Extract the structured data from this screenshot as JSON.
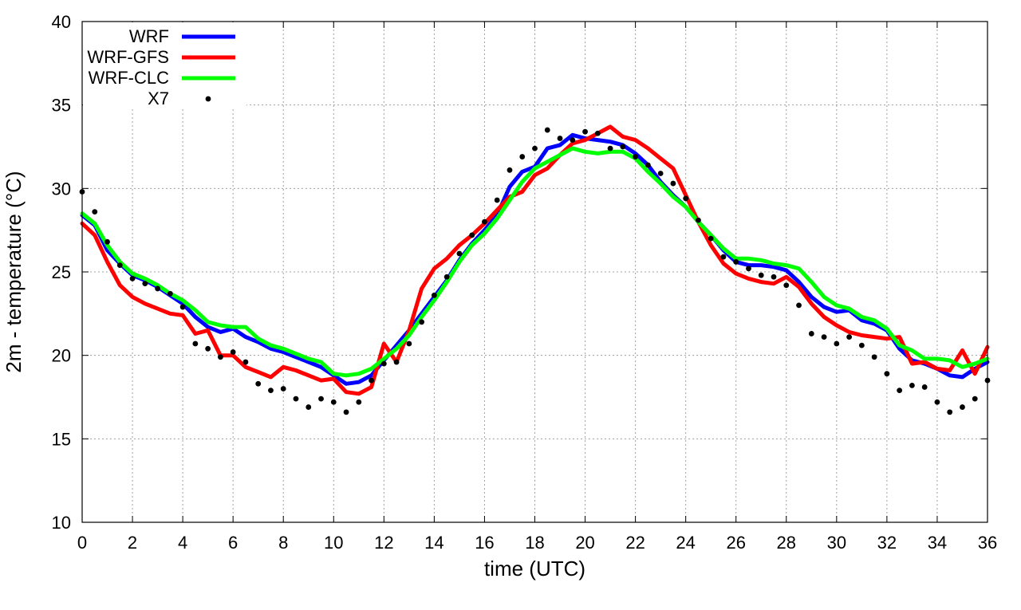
{
  "chart_data": {
    "type": "line",
    "title": "",
    "xlabel": "time (UTC)",
    "ylabel": "2m - temperature (°C)",
    "xlim": [
      0,
      36
    ],
    "ylim": [
      10,
      40
    ],
    "xticks": [
      "0",
      "2",
      "4",
      "6",
      "8",
      "10",
      "12",
      "14",
      "16",
      "18",
      "20",
      "22",
      "24",
      "26",
      "28",
      "30",
      "32",
      "34",
      "36"
    ],
    "yticks": [
      "10",
      "15",
      "20",
      "25",
      "30",
      "35",
      "40"
    ],
    "grid": true,
    "legend_position": "top-left",
    "series": [
      {
        "name": "WRF",
        "style": "line",
        "color": "#0000ff",
        "x": [
          0,
          0.5,
          1,
          1.5,
          2,
          2.5,
          3,
          3.5,
          4,
          4.5,
          5,
          5.5,
          6,
          6.5,
          7,
          7.5,
          8,
          8.5,
          9,
          9.5,
          10,
          10.5,
          11,
          11.5,
          12,
          12.5,
          13,
          13.5,
          14,
          14.5,
          15,
          15.5,
          16,
          16.5,
          17,
          17.5,
          18,
          18.5,
          19,
          19.5,
          20,
          20.5,
          21,
          21.5,
          22,
          22.5,
          23,
          23.5,
          24,
          24.5,
          25,
          25.5,
          26,
          26.5,
          27,
          27.5,
          28,
          28.5,
          29,
          29.5,
          30,
          30.5,
          31,
          31.5,
          32,
          32.5,
          33,
          33.5,
          34,
          34.5,
          35,
          35.5,
          36
        ],
        "y": [
          28.4,
          27.8,
          26.3,
          25.5,
          24.8,
          24.5,
          24.1,
          23.6,
          23.1,
          22.3,
          21.7,
          21.4,
          21.6,
          21.1,
          20.8,
          20.4,
          20.2,
          19.9,
          19.6,
          19.3,
          18.8,
          18.3,
          18.4,
          18.8,
          19.7,
          20.6,
          21.5,
          22.5,
          23.5,
          24.5,
          25.7,
          26.7,
          27.5,
          28.4,
          30.1,
          31.0,
          31.3,
          32.4,
          32.6,
          33.2,
          33.0,
          32.9,
          32.8,
          32.6,
          32.1,
          31.4,
          30.4,
          29.6,
          28.9,
          28.0,
          27.2,
          26.3,
          25.6,
          25.4,
          25.4,
          25.3,
          25.1,
          24.4,
          23.5,
          22.9,
          22.6,
          22.7,
          22.1,
          21.9,
          21.5,
          20.4,
          19.7,
          19.5,
          19.2,
          18.8,
          18.7,
          19.2,
          19.6
        ]
      },
      {
        "name": "WRF-GFS",
        "style": "line",
        "color": "#ff0000",
        "x": [
          0,
          0.5,
          1,
          1.5,
          2,
          2.5,
          3,
          3.5,
          4,
          4.5,
          5,
          5.5,
          6,
          6.5,
          7,
          7.5,
          8,
          8.5,
          9,
          9.5,
          10,
          10.5,
          11,
          11.5,
          12,
          12.5,
          13,
          13.5,
          14,
          14.5,
          15,
          15.5,
          16,
          16.5,
          17,
          17.5,
          18,
          18.5,
          19,
          19.5,
          20,
          20.5,
          21,
          21.5,
          22,
          22.5,
          23,
          23.5,
          24,
          24.5,
          25,
          25.5,
          26,
          26.5,
          27,
          27.5,
          28,
          28.5,
          29,
          29.5,
          30,
          30.5,
          31,
          31.5,
          32,
          32.5,
          33,
          33.5,
          34,
          34.5,
          35,
          35.5,
          36
        ],
        "y": [
          27.9,
          27.2,
          25.6,
          24.2,
          23.5,
          23.1,
          22.8,
          22.5,
          22.4,
          21.3,
          21.5,
          20.0,
          20.0,
          19.3,
          19.0,
          18.7,
          19.3,
          19.1,
          18.8,
          18.5,
          18.6,
          17.8,
          17.7,
          18.1,
          20.7,
          19.6,
          21.5,
          24.0,
          25.2,
          25.8,
          26.6,
          27.2,
          27.9,
          28.7,
          29.5,
          29.8,
          30.8,
          31.2,
          32.0,
          32.7,
          32.9,
          33.3,
          33.7,
          33.1,
          32.9,
          32.4,
          31.8,
          31.2,
          29.6,
          28.0,
          26.6,
          25.5,
          24.9,
          24.6,
          24.4,
          24.3,
          24.7,
          24.1,
          23.1,
          22.3,
          21.8,
          21.4,
          21.2,
          21.1,
          21.0,
          21.1,
          19.5,
          19.6,
          19.2,
          19.1,
          20.3,
          18.9,
          20.5
        ]
      },
      {
        "name": "WRF-CLC",
        "style": "line",
        "color": "#00ff00",
        "x": [
          0,
          0.5,
          1,
          1.5,
          2,
          2.5,
          3,
          3.5,
          4,
          4.5,
          5,
          5.5,
          6,
          6.5,
          7,
          7.5,
          8,
          8.5,
          9,
          9.5,
          10,
          10.5,
          11,
          11.5,
          12,
          12.5,
          13,
          13.5,
          14,
          14.5,
          15,
          15.5,
          16,
          16.5,
          17,
          17.5,
          18,
          18.5,
          19,
          19.5,
          20,
          20.5,
          21,
          21.5,
          22,
          22.5,
          23,
          23.5,
          24,
          24.5,
          25,
          25.5,
          26,
          26.5,
          27,
          27.5,
          28,
          28.5,
          29,
          29.5,
          30,
          30.5,
          31,
          31.5,
          32,
          32.5,
          33,
          33.5,
          34,
          34.5,
          35,
          35.5,
          36
        ],
        "y": [
          28.5,
          27.9,
          26.6,
          25.6,
          24.9,
          24.6,
          24.2,
          23.7,
          23.3,
          22.7,
          22.0,
          21.8,
          21.7,
          21.7,
          21.0,
          20.6,
          20.4,
          20.1,
          19.8,
          19.6,
          18.9,
          18.8,
          18.9,
          19.2,
          19.8,
          20.4,
          21.2,
          22.3,
          23.3,
          24.4,
          25.6,
          26.6,
          27.3,
          28.2,
          29.3,
          30.4,
          31.2,
          31.6,
          32.0,
          32.4,
          32.2,
          32.1,
          32.2,
          32.2,
          31.8,
          31.0,
          30.3,
          29.5,
          28.9,
          28.0,
          27.2,
          26.4,
          25.8,
          25.8,
          25.7,
          25.5,
          25.4,
          25.2,
          24.4,
          23.5,
          23.0,
          22.8,
          22.3,
          22.1,
          21.6,
          20.6,
          20.3,
          19.8,
          19.8,
          19.7,
          19.3,
          19.5,
          19.8
        ]
      },
      {
        "name": "X7",
        "style": "points",
        "color": "#000000",
        "x": [
          0,
          0.5,
          1,
          1.5,
          2,
          2.5,
          3,
          3.5,
          4,
          4.5,
          5,
          5.5,
          6,
          6.5,
          7,
          7.5,
          8,
          8.5,
          9,
          9.5,
          10,
          10.5,
          11,
          11.5,
          12,
          12.5,
          13,
          13.5,
          14,
          14.5,
          15,
          15.5,
          16,
          16.5,
          17,
          17.5,
          18,
          18.5,
          19,
          19.5,
          20,
          20.5,
          21,
          21.5,
          22,
          22.5,
          23,
          23.5,
          24,
          24.5,
          25,
          25.5,
          26,
          26.5,
          27,
          27.5,
          28,
          28.5,
          29,
          29.5,
          30,
          30.5,
          31,
          31.5,
          32,
          32.5,
          33,
          33.5,
          34,
          34.5,
          35,
          35.5,
          36
        ],
        "y": [
          29.8,
          28.6,
          26.8,
          25.4,
          24.6,
          24.3,
          24.0,
          23.7,
          22.9,
          20.7,
          20.4,
          19.9,
          20.2,
          19.6,
          18.3,
          17.9,
          18.0,
          17.4,
          16.9,
          17.4,
          17.2,
          16.6,
          17.2,
          18.5,
          19.5,
          19.6,
          20.7,
          22.0,
          23.6,
          24.7,
          26.1,
          27.2,
          28.0,
          29.3,
          31.1,
          31.9,
          32.4,
          33.5,
          33.0,
          32.9,
          33.4,
          33.3,
          32.4,
          32.5,
          31.9,
          31.4,
          30.9,
          30.3,
          29.4,
          28.1,
          27.0,
          25.9,
          25.6,
          25.2,
          24.8,
          24.7,
          24.2,
          23.0,
          21.3,
          21.1,
          20.7,
          21.1,
          20.6,
          19.9,
          18.9,
          17.9,
          18.2,
          18.1,
          17.2,
          16.6,
          16.9,
          17.4,
          18.5
        ]
      }
    ]
  }
}
